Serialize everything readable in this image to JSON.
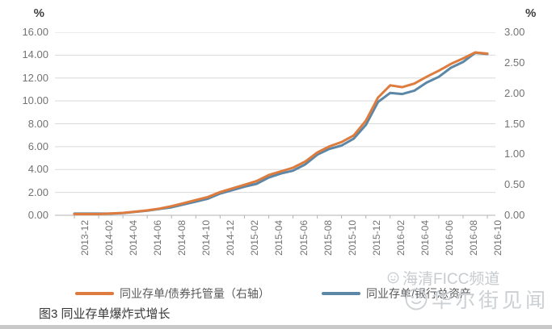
{
  "chart_data": {
    "type": "line",
    "title": "图3 同业存单爆炸式增长",
    "x": [
      "2013-12",
      "2014-01",
      "2014-02",
      "2014-03",
      "2014-04",
      "2014-05",
      "2014-06",
      "2014-07",
      "2014-08",
      "2014-09",
      "2014-10",
      "2014-11",
      "2014-12",
      "2015-01",
      "2015-02",
      "2015-03",
      "2015-04",
      "2015-05",
      "2015-06",
      "2015-07",
      "2015-08",
      "2015-09",
      "2015-10",
      "2015-11",
      "2015-12",
      "2016-01",
      "2016-02",
      "2016-03",
      "2016-04",
      "2016-05",
      "2016-06",
      "2016-07",
      "2016-08",
      "2016-09",
      "2016-10"
    ],
    "x_tick_labels": [
      "2013-12",
      "2014-02",
      "2014-04",
      "2014-06",
      "2014-08",
      "2014-10",
      "2014-12",
      "2015-02",
      "2015-04",
      "2015-06",
      "2015-08",
      "2015-10",
      "2015-12",
      "2016-02",
      "2016-04",
      "2016-06",
      "2016-08",
      "2016-10"
    ],
    "series": [
      {
        "name": "同业存单/债券托管量（右轴）",
        "axis": "right",
        "color": "#dd7c3e",
        "values": [
          0.02,
          0.02,
          0.02,
          0.03,
          0.04,
          0.06,
          0.08,
          0.11,
          0.15,
          0.2,
          0.25,
          0.3,
          0.38,
          0.44,
          0.5,
          0.56,
          0.66,
          0.72,
          0.78,
          0.88,
          1.03,
          1.13,
          1.2,
          1.31,
          1.55,
          1.93,
          2.13,
          2.1,
          2.16,
          2.27,
          2.37,
          2.48,
          2.57,
          2.67,
          2.65
        ]
      },
      {
        "name": "同业存单/银行总资产",
        "axis": "left",
        "color": "#5c87a6",
        "values": [
          0.15,
          0.15,
          0.15,
          0.15,
          0.2,
          0.3,
          0.4,
          0.55,
          0.7,
          0.95,
          1.2,
          1.45,
          1.9,
          2.2,
          2.5,
          2.75,
          3.3,
          3.65,
          3.9,
          4.45,
          5.3,
          5.8,
          6.1,
          6.7,
          7.9,
          9.9,
          10.7,
          10.6,
          10.9,
          11.6,
          12.1,
          12.9,
          13.4,
          14.2,
          14.1
        ]
      }
    ],
    "left_axis": {
      "unit": "%",
      "min": 0,
      "max": 16,
      "step": 2,
      "tick_labels": [
        "16.00",
        "14.00",
        "12.00",
        "10.00",
        "8.00",
        "6.00",
        "4.00",
        "2.00",
        "0.00"
      ]
    },
    "right_axis": {
      "unit": "%",
      "min": 0,
      "max": 3,
      "step": 0.5,
      "tick_labels": [
        "3.00",
        "2.50",
        "2.00",
        "1.50",
        "1.00",
        "0.50",
        "0.00"
      ]
    },
    "grid": true,
    "legend_position": "bottom"
  },
  "watermarks": [
    {
      "text": "海清FICC频道"
    },
    {
      "text": "华尔街见闻"
    }
  ],
  "colors": {
    "orange": "#dd7c3e",
    "blue": "#5c87a6",
    "grid": "#d9d9d9",
    "axis_line": "#b3b3b3",
    "tick_text": "#737373",
    "legend_text": "#595959",
    "caption_text": "#373737",
    "watermark": "#c9cdd0"
  }
}
